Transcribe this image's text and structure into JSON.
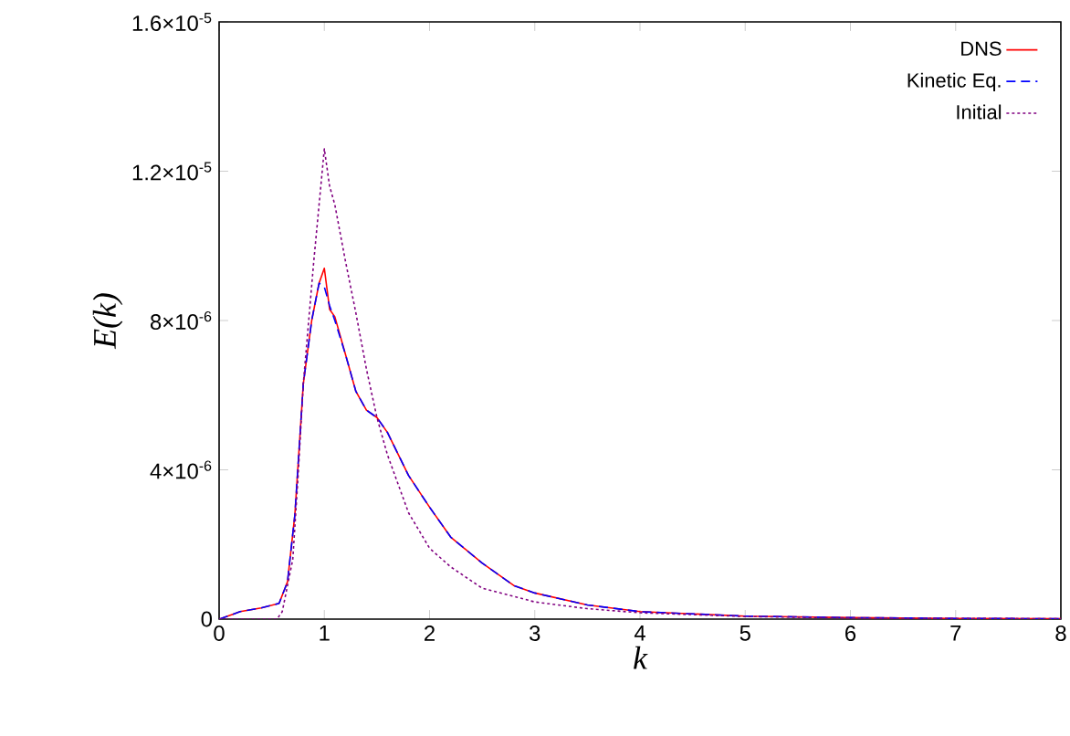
{
  "chart_data": {
    "type": "line",
    "xlabel": "k",
    "ylabel": "E(k)",
    "xlim": [
      0,
      8
    ],
    "xticks": [
      0,
      1,
      2,
      3,
      4,
      5,
      6,
      7,
      8
    ],
    "ylim": [
      0,
      1.6e-05
    ],
    "yticks": [
      0,
      {
        "value": 4e-06,
        "label": "4×10$^{-6}$"
      },
      {
        "value": 8e-06,
        "label": "8×10$^{-6}$"
      },
      {
        "value": 1.2e-05,
        "label": "1.2×10$^{-5}$"
      },
      {
        "value": 1.6e-05,
        "label": "1.6×10$^{-5}$"
      }
    ],
    "grid": false,
    "legend": "top right",
    "marker": "none",
    "series": [
      {
        "name": "DNS",
        "color": "#ff0000",
        "line_style": "solid",
        "x": [
          0,
          0.2,
          0.4,
          0.57,
          0.65,
          0.72,
          0.8,
          0.88,
          0.95,
          1.0,
          1.05,
          1.1,
          1.2,
          1.3,
          1.4,
          1.5,
          1.6,
          1.8,
          2.0,
          2.2,
          2.5,
          2.8,
          3.0,
          3.5,
          4.0,
          5.0,
          6.0,
          7.0,
          8.0
        ],
        "values": [
          0,
          2e-07,
          3e-07,
          4.2e-07,
          1e-06,
          2.8e-06,
          6.3e-06,
          8e-06,
          9e-06,
          9.4e-06,
          8.3e-06,
          8.1e-06,
          7.1e-06,
          6.1e-06,
          5.6e-06,
          5.4e-06,
          5e-06,
          3.85e-06,
          3e-06,
          2.2e-06,
          1.5e-06,
          9e-07,
          7e-07,
          3.8e-07,
          2e-07,
          8e-08,
          4e-08,
          2e-08,
          1e-08
        ]
      },
      {
        "name": "Kinetic Eq.",
        "color": "#0000ff",
        "line_style": "dashed",
        "x": [
          0,
          0.2,
          0.4,
          0.57,
          0.65,
          0.72,
          0.8,
          0.88,
          0.95,
          1.0,
          1.05,
          1.1,
          1.2,
          1.3,
          1.4,
          1.5,
          1.6,
          1.8,
          2.0,
          2.2,
          2.5,
          2.8,
          3.0,
          3.5,
          4.0,
          5.0,
          6.0,
          7.0,
          8.0
        ],
        "values": [
          0,
          2e-07,
          3e-07,
          4.2e-07,
          1e-06,
          2.8e-06,
          6.3e-06,
          8e-06,
          9e-06,
          8.9e-06,
          8.4e-06,
          8e-06,
          7.1e-06,
          6.1e-06,
          5.6e-06,
          5.4e-06,
          5e-06,
          3.85e-06,
          3e-06,
          2.2e-06,
          1.5e-06,
          9e-07,
          7e-07,
          3.8e-07,
          2e-07,
          8e-08,
          4e-08,
          2e-08,
          1e-08
        ]
      },
      {
        "name": "Initial",
        "color": "#800080",
        "line_style": "dotted",
        "x": [
          0,
          0.55,
          0.6,
          0.7,
          0.75,
          0.8,
          0.9,
          1.0,
          1.05,
          1.1,
          1.2,
          1.3,
          1.4,
          1.5,
          1.6,
          1.8,
          2.0,
          2.2,
          2.5,
          3.0,
          3.5,
          4.0,
          5.0,
          6.0,
          8.0
        ],
        "values": [
          0,
          0,
          2e-07,
          1.6e-06,
          3.8e-06,
          6.3e-06,
          9.6e-06,
          1.26e-05,
          1.16e-05,
          1.11e-05,
          9.6e-06,
          8.2e-06,
          6.7e-06,
          5.4e-06,
          4.4e-06,
          2.85e-06,
          1.9e-06,
          1.4e-06,
          8.3e-07,
          4.6e-07,
          2.8e-07,
          1.7e-07,
          7e-08,
          3e-08,
          1e-08
        ]
      }
    ]
  }
}
